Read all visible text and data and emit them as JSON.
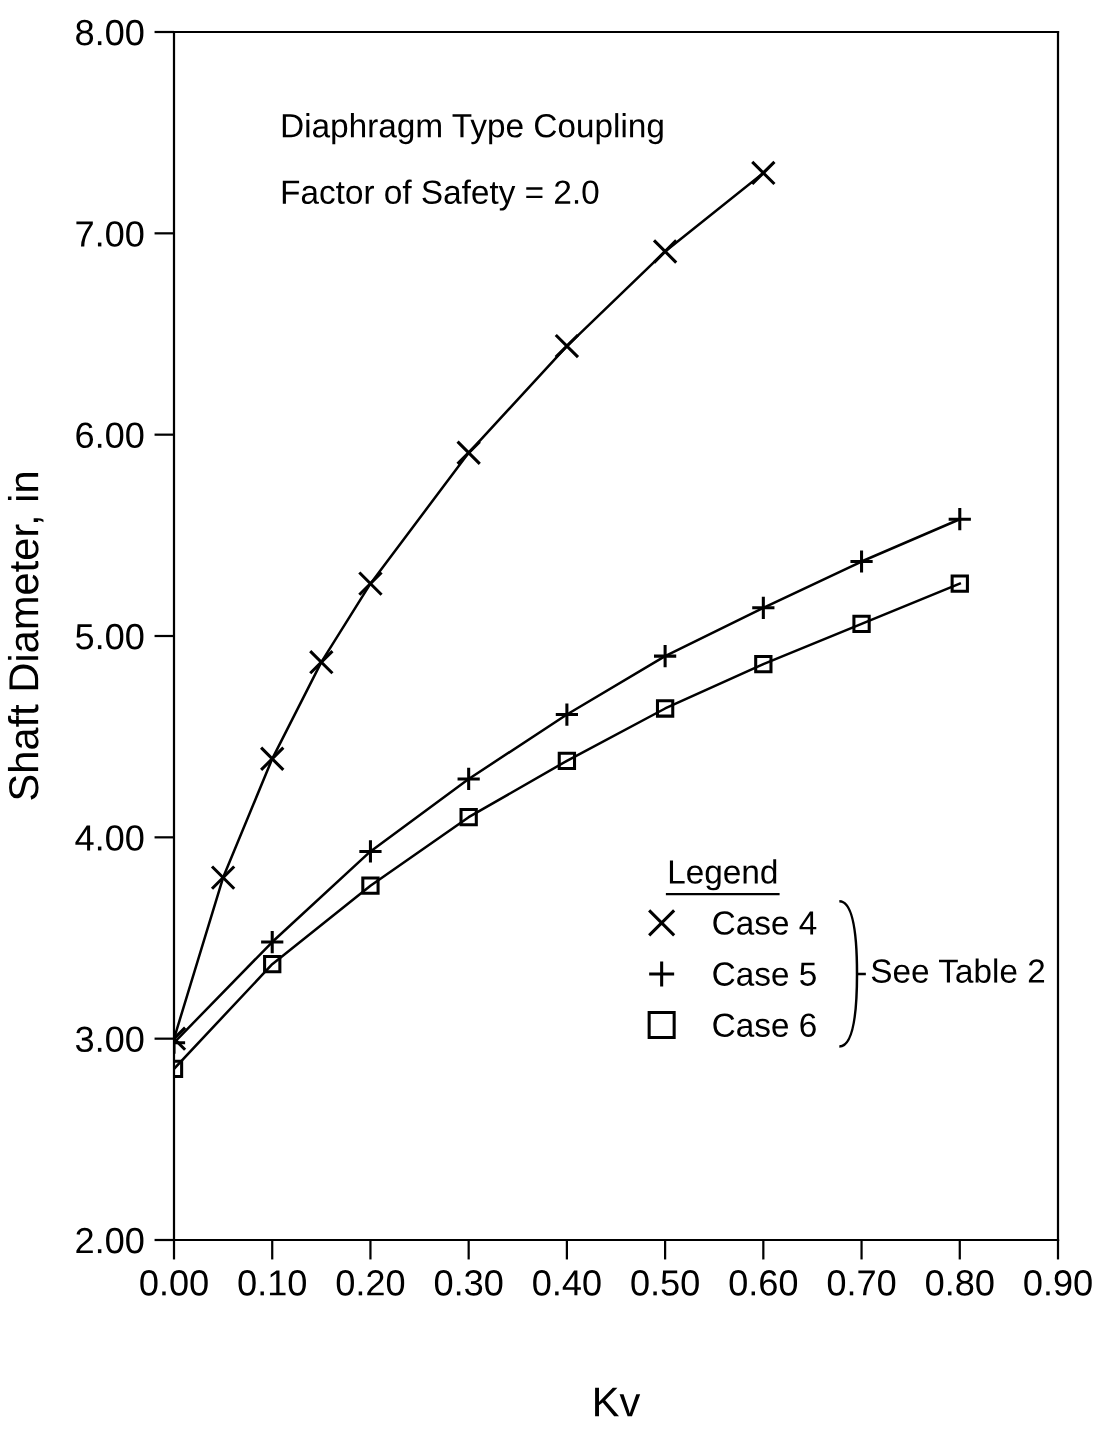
{
  "chart_data": {
    "type": "line",
    "xlabel": "Kv",
    "ylabel": "Shaft Diameter, in",
    "legend_title": "Legend",
    "annotations": [
      "Diaphragm Type Coupling",
      "Factor of Safety = 2.0",
      "See Table 2"
    ],
    "xlim": [
      0,
      0.9
    ],
    "ylim": [
      2,
      8
    ],
    "xticks": [
      {
        "value": 0,
        "label": "0.00"
      },
      {
        "value": 0.1,
        "label": "0.10"
      },
      {
        "value": 0.2,
        "label": "0.20"
      },
      {
        "value": 0.3,
        "label": "0.30"
      },
      {
        "value": 0.4,
        "label": "0.40"
      },
      {
        "value": 0.5,
        "label": "0.50"
      },
      {
        "value": 0.6,
        "label": "0.60"
      },
      {
        "value": 0.7,
        "label": "0.70"
      },
      {
        "value": 0.8,
        "label": "0.80"
      },
      {
        "value": 0.9,
        "label": "0.90"
      }
    ],
    "yticks": [
      {
        "value": 2,
        "label": "2.00"
      },
      {
        "value": 3,
        "label": "3.00"
      },
      {
        "value": 4,
        "label": "4.00"
      },
      {
        "value": 5,
        "label": "5.00"
      },
      {
        "value": 6,
        "label": "6.00"
      },
      {
        "value": 7,
        "label": "7.00"
      },
      {
        "value": 8,
        "label": "8.00"
      }
    ],
    "grid": false,
    "legend": "bottom right",
    "line_style": "solid",
    "series": [
      {
        "name": "Case 4",
        "color": "#000000",
        "marker": "cross",
        "x": [
          0,
          0.05,
          0.1,
          0.15,
          0.2,
          0.3,
          0.4,
          0.5,
          0.6
        ],
        "values": [
          3.0,
          3.8,
          4.39,
          4.87,
          5.26,
          5.91,
          6.44,
          6.91,
          7.3
        ]
      },
      {
        "name": "Case 5",
        "color": "#000000",
        "marker": "plus",
        "x": [
          0,
          0.1,
          0.2,
          0.3,
          0.4,
          0.5,
          0.6,
          0.7,
          0.8
        ],
        "values": [
          2.98,
          3.48,
          3.93,
          4.29,
          4.61,
          4.9,
          5.14,
          5.37,
          5.58
        ]
      },
      {
        "name": "Case 6",
        "color": "#000000",
        "marker": "square",
        "x": [
          0,
          0.1,
          0.2,
          0.3,
          0.4,
          0.5,
          0.6,
          0.7,
          0.8
        ],
        "values": [
          2.85,
          3.37,
          3.76,
          4.1,
          4.38,
          4.64,
          4.86,
          5.06,
          5.26
        ]
      }
    ]
  }
}
